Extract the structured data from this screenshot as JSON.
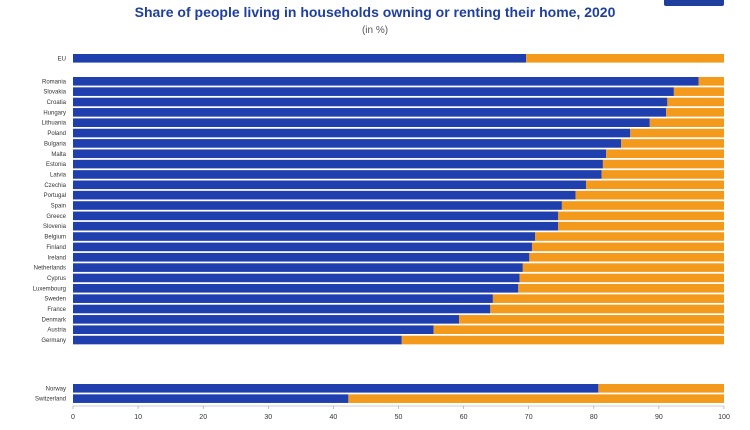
{
  "chart_data": {
    "type": "bar",
    "orientation": "horizontal-stacked-100",
    "title": "Share of people living in households owning or renting their home, 2020",
    "subtitle": "(in %)",
    "xlim": [
      0,
      100
    ],
    "xticks": [
      "0",
      "10",
      "20",
      "30",
      "40",
      "50",
      "60",
      "70",
      "80",
      "90",
      "100"
    ],
    "grid": false,
    "colors": {
      "owner": "#1f3fae",
      "tenant": "#f39a1c"
    },
    "groups": [
      {
        "categories": [
          "EU"
        ],
        "values": [
          69.6
        ]
      },
      {
        "categories": [
          "Romania",
          "Slovakia",
          "Croatia",
          "Hungary",
          "Lithuania",
          "Poland",
          "Bulgaria",
          "Malta",
          "Estonia",
          "Latvia",
          "Czechia",
          "Portugal",
          "Spain",
          "Greece",
          "Slovenia",
          "Belgium",
          "Finland",
          "Ireland",
          "Netherlands",
          "Cyprus",
          "Luxembourg",
          "Sweden",
          "France",
          "Denmark",
          "Austria",
          "Germany"
        ],
        "values": [
          96.1,
          92.3,
          91.3,
          91.1,
          88.6,
          85.6,
          84.2,
          81.9,
          81.4,
          81.2,
          78.8,
          77.2,
          75.1,
          74.5,
          74.5,
          71.0,
          70.5,
          70.1,
          69.1,
          68.6,
          68.4,
          64.5,
          64.1,
          59.3,
          55.4,
          50.5
        ]
      },
      {
        "categories": [
          "Norway",
          "Switzerland"
        ],
        "values": [
          80.7,
          42.3
        ]
      }
    ]
  }
}
